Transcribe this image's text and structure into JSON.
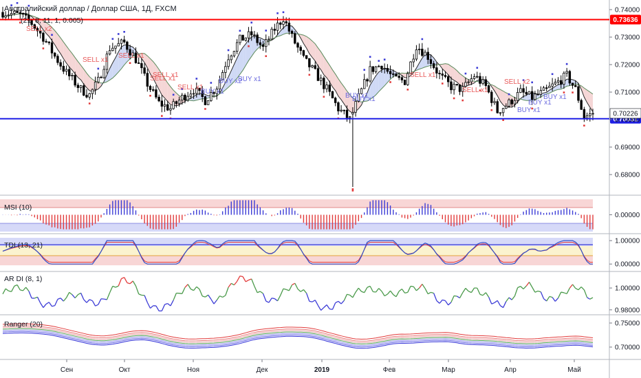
{
  "chart_data": {
    "type": "candlestick",
    "title": "Австралийский доллар / Доллар США, 1Д, FXCM",
    "main_indicator_label": "(21, 8, 11, 1, 0.005)",
    "x_ticks": [
      "Сен",
      "Окт",
      "Ноя",
      "Дек",
      "2019",
      "Фев",
      "Мар",
      "Апр",
      "Май"
    ],
    "price_axis": {
      "range": [
        0.6735,
        0.7425
      ],
      "ticks": [
        "0.74000",
        "0.73000",
        "0.72000",
        "0.71000",
        "0.70000",
        "0.69000",
        "0.68000"
      ],
      "tick_values": [
        0.74,
        0.73,
        0.72,
        0.71,
        0.7,
        0.69,
        0.68
      ],
      "last_price_label": "0.70226",
      "last_price_value": 0.70226
    },
    "levels": [
      {
        "value": 0.73636,
        "label": "0.73636",
        "color": "#ff0000"
      },
      {
        "value": 0.70031,
        "label": "0.70031",
        "color": "#1e1ee6"
      }
    ],
    "signals_sell": [
      "SELL x2",
      "SELL x1",
      "SELL x1",
      "SELL x1",
      "SELL x1",
      "SELL x1",
      "SELL x1",
      "SELL x1",
      "SELL x2"
    ],
    "signals_buy": [
      "BUY x2",
      "BUY x1",
      "BUY x1",
      "BUY x1",
      "BUY x1",
      "BUY x1",
      "BUY x1",
      "BUY x1"
    ],
    "indicators": [
      {
        "name": "MSI (10)",
        "ticks": [
          "0.00000"
        ],
        "tick_values": [
          0
        ],
        "range": [
          -0.09,
          0.09
        ]
      },
      {
        "name": "TDI (13, 21)",
        "ticks": [
          "1.00000",
          "0.00000"
        ],
        "tick_values": [
          1,
          0
        ],
        "range": [
          -0.2,
          1.15
        ]
      },
      {
        "name": "AR DI (8, 1)",
        "ticks": [
          "1.00000",
          "0.98000"
        ],
        "tick_values": [
          1.0,
          0.98
        ],
        "range": [
          0.978,
          1.012
        ]
      },
      {
        "name": "Ranger (20)",
        "ticks": [
          "0.75000",
          "0.70000"
        ],
        "tick_values": [
          0.75,
          0.7
        ],
        "range": [
          0.68,
          0.76
        ]
      }
    ],
    "colors": {
      "bull": "#000000",
      "bear": "#000000",
      "up_marker": "#3b3bd6",
      "down_marker": "#e23b3b",
      "sell_text": "#e85a5a",
      "buy_text": "#6a6adf"
    }
  }
}
